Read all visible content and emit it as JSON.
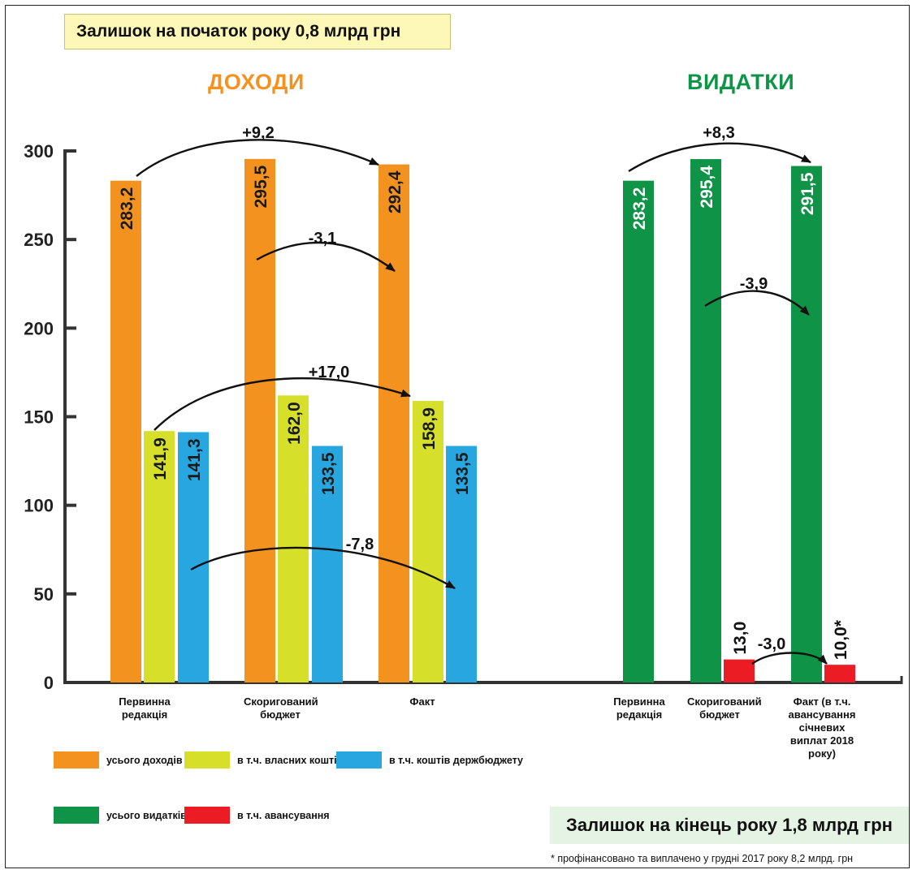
{
  "header": {
    "opening_balance": "Залишок на початок року 0,8 млрд грн"
  },
  "footer": {
    "closing_balance": "Залишок на кінець року 1,8 млрд грн",
    "footnote": "* профінансовано та виплачено у грудні 2017 року 8,2 млрд. грн"
  },
  "legend": {
    "total_income": "усього доходів",
    "own_funds": "в т.ч. власних коштів",
    "state_budget_funds": "в т.ч. коштів держбюджету",
    "total_expenses": "усього видатків",
    "advances": "в т.ч. авансування"
  },
  "colors": {
    "orange": "#f4921f",
    "yellow": "#d6df2a",
    "blue": "#27a6df",
    "green": "#0f9447",
    "red": "#ec1c24",
    "income_title": "#f4921f",
    "expense_title": "#0f9447"
  },
  "chart_data": {
    "type": "bar",
    "ylim": [
      0,
      300
    ],
    "yticks": [
      "0",
      "50",
      "100",
      "150",
      "200",
      "250",
      "300"
    ],
    "income": {
      "title": "ДОХОДИ",
      "categories": [
        "Первинна редакція",
        "Скоригований бюджет",
        "Факт"
      ],
      "series": [
        {
          "name": "усього доходів",
          "color": "orange",
          "values": [
            283.2,
            295.5,
            292.4
          ],
          "labels": [
            "283,2",
            "295,5",
            "292,4"
          ]
        },
        {
          "name": "в т.ч. власних коштів",
          "color": "yellow",
          "values": [
            141.9,
            162.0,
            158.9
          ],
          "labels": [
            "141,9",
            "162,0",
            "158,9"
          ]
        },
        {
          "name": "в т.ч. коштів держбюджету",
          "color": "blue",
          "values": [
            141.3,
            133.5,
            133.5
          ],
          "labels": [
            "141,3",
            "133,5",
            "133,5"
          ]
        }
      ],
      "annotations": [
        "+9,2",
        "-3,1",
        "+17,0",
        "-7,8"
      ]
    },
    "expenses": {
      "title": "ВИДАТКИ",
      "categories": [
        "Первинна редакція",
        "Скоригований бюджет",
        "Факт (в т.ч. авансування січневих виплат 2018 року)"
      ],
      "series": [
        {
          "name": "усього видатків",
          "color": "green",
          "values": [
            283.2,
            295.4,
            291.5
          ],
          "labels": [
            "283,2",
            "295,4",
            "291,5"
          ]
        },
        {
          "name": "в т.ч. авансування",
          "color": "red",
          "values": [
            null,
            13.0,
            10.0
          ],
          "labels": [
            "",
            "13,0",
            "10,0*"
          ]
        }
      ],
      "annotations": [
        "+8,3",
        "-3,9",
        "-3,0"
      ]
    }
  }
}
